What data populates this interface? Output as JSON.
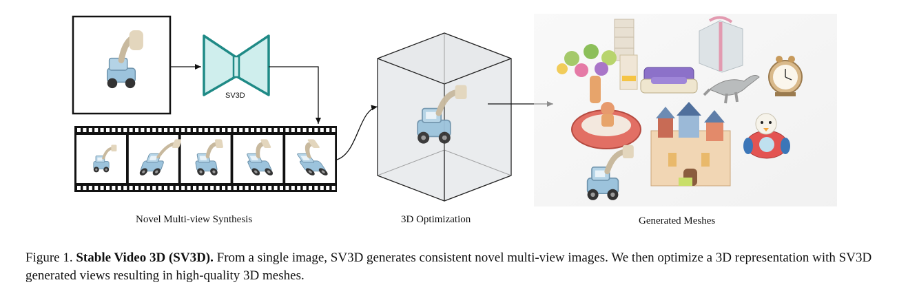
{
  "figure": {
    "stage_labels": {
      "synthesis": "Novel Multi-view Synthesis",
      "optimization": "3D Optimization",
      "meshes": "Generated Meshes"
    },
    "model_label": "SV3D"
  },
  "caption": {
    "prefix": "Figure 1.",
    "title": "Stable Video 3D (SV3D).",
    "body": "From a single image, SV3D generates consistent novel multi-view images. We then optimize a 3D representation with SV3D generated views resulting in high-quality 3D meshes."
  },
  "colors": {
    "sv3d_teal": "#1f8a86",
    "sv3d_fill": "#cfeeed",
    "toy_blue": "#9cc3dc",
    "toy_cream": "#e3d6bd",
    "film_black": "#111111"
  }
}
